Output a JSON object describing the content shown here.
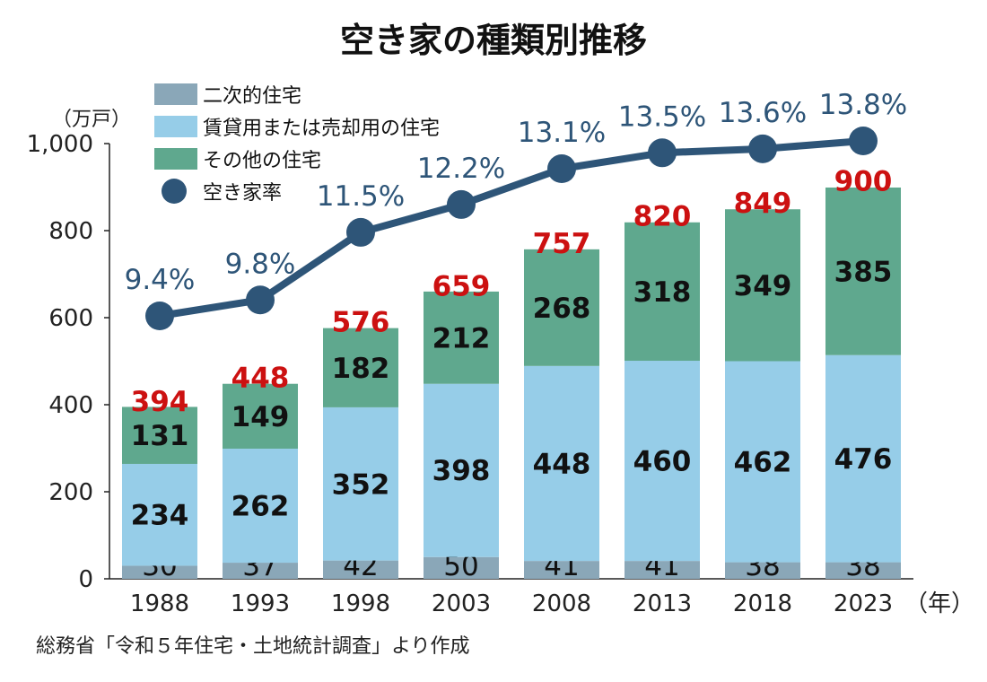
{
  "title": "空き家の種類別推移",
  "source": "総務省「令和５年住宅・土地統計調査」より作成",
  "chart_data": {
    "type": "bar",
    "stacked": true,
    "y_unit": "（万戸）",
    "x_unit": "（年）",
    "ylim": [
      0,
      1000
    ],
    "yticks": [
      0,
      200,
      400,
      600,
      800,
      1000
    ],
    "ytick_labels": [
      "0",
      "200",
      "400",
      "600",
      "800",
      "1,000"
    ],
    "categories": [
      "1988",
      "1993",
      "1998",
      "2003",
      "2008",
      "2013",
      "2018",
      "2023"
    ],
    "series": [
      {
        "name": "二次的住宅",
        "color": "#8aa7b8",
        "values": [
          30,
          37,
          42,
          50,
          41,
          41,
          38,
          38
        ]
      },
      {
        "name": "賃貸用または売却用の住宅",
        "color": "#96cde8",
        "values": [
          234,
          262,
          352,
          398,
          448,
          460,
          462,
          476
        ]
      },
      {
        "name": "その他の住宅",
        "color": "#5fa88e",
        "values": [
          131,
          149,
          182,
          212,
          268,
          318,
          349,
          385
        ]
      }
    ],
    "totals": [
      394,
      448,
      576,
      659,
      757,
      820,
      849,
      900
    ],
    "line_series": {
      "name": "空き家率",
      "color": "#2e5578",
      "values": [
        9.4,
        9.8,
        11.5,
        12.2,
        13.1,
        13.5,
        13.6,
        13.8
      ],
      "labels": [
        "9.4%",
        "9.8%",
        "11.5%",
        "12.2%",
        "13.1%",
        "13.5%",
        "13.6%",
        "13.8%"
      ]
    },
    "legend_position": "top-left"
  }
}
